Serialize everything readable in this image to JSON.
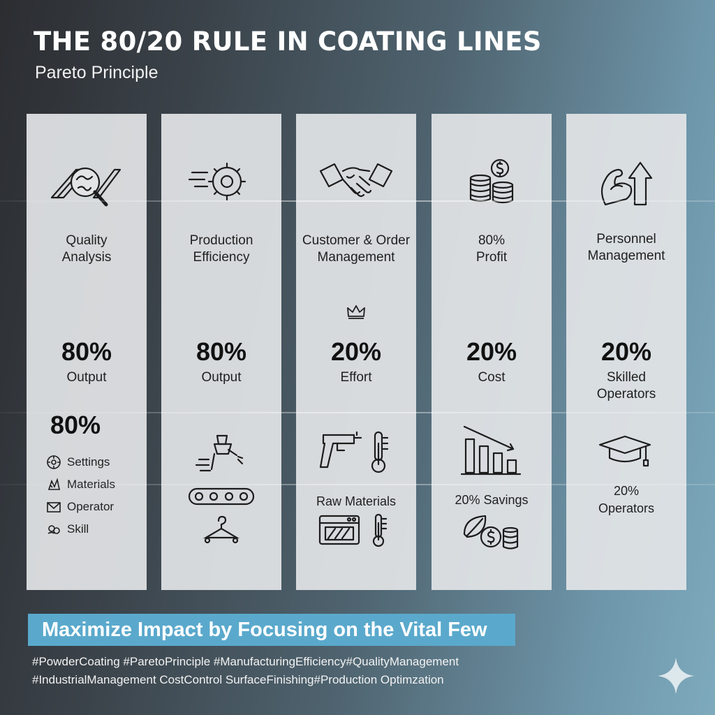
{
  "header": {
    "title": "THE 80/20 RULE IN COATING LINES",
    "subtitle": "Pareto Principle"
  },
  "columns": [
    {
      "heading": [
        "Quality",
        "Analysis"
      ],
      "icon": "magnifier-globe-icon",
      "percent": "80%",
      "label": [
        "Output"
      ],
      "secondary_percent": "80%",
      "items": [
        {
          "icon": "settings-icon",
          "text": "Settings"
        },
        {
          "icon": "materials-icon",
          "text": "Materials"
        },
        {
          "icon": "envelope-icon",
          "text": "Operator"
        },
        {
          "icon": "skill-icon",
          "text": "Skill"
        }
      ]
    },
    {
      "heading": [
        "Production",
        "Efficiency"
      ],
      "icon": "gear-speed-icon",
      "percent": "80%",
      "label": [
        "Output"
      ],
      "lower_icons": [
        "spray-gun-icon",
        "conveyor-icon",
        "hanger-icon"
      ]
    },
    {
      "heading": [
        "Customer & Order",
        "Management"
      ],
      "icon": "handshake-icon",
      "crown_icon": "crown-icon",
      "percent": "20%",
      "label": [
        "Effort"
      ],
      "lower_icons": [
        "spray-gun-icon",
        "thermometer-icon",
        "oven-icon",
        "thermometer-icon"
      ],
      "caption": "Raw Materials"
    },
    {
      "heading": [
        "80%",
        "Profit"
      ],
      "icon": "coins-dollar-icon",
      "percent": "20%",
      "label": [
        "Cost"
      ],
      "lower_icons": [
        "declining-bar-chart-icon",
        "leaf-coins-icon"
      ],
      "caption": "20% Savings"
    },
    {
      "heading": [
        "Personnel",
        "Management"
      ],
      "icon": "flexed-arm-arrow-icon",
      "percent": "20%",
      "label": [
        "Skilled",
        "Operators"
      ],
      "lower_icons": [
        "graduation-cap-icon"
      ],
      "caption": [
        "20%",
        "Operators"
      ]
    }
  ],
  "banner": {
    "text": "Maximize Impact by Focusing on the Vital Few",
    "color": "#5aa9cc"
  },
  "hashtags": [
    "#PowderCoating #ParetoPrinciple #ManufacturingEfficiency#QualityManagement",
    "#IndustrialManagement  CostControl SurfaceFinishing#Production Optimzation"
  ],
  "decor_icon": "sparkle-icon"
}
